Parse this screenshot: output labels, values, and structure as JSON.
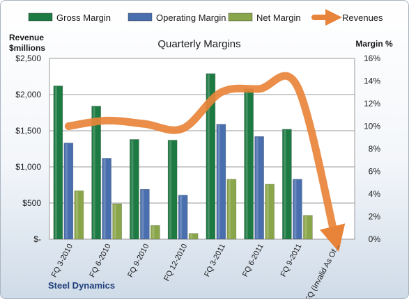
{
  "chart_data": {
    "type": "bar",
    "title": "Quarterly Margins",
    "footer": "Steel Dynamics",
    "categories": [
      "FQ 3-2010",
      "FQ 6-2010",
      "FQ 9-2010",
      "FQ 12-2010",
      "FQ 3-2011",
      "FQ 6-2011",
      "FQ 9-2011",
      "FQ (Invalid As Of..."
    ],
    "series": [
      {
        "name": "Gross Margin",
        "axis": "left",
        "color": "#1e7a43",
        "values": [
          2120,
          1840,
          1380,
          1370,
          2290,
          2080,
          1520,
          null
        ]
      },
      {
        "name": "Operating Margin",
        "axis": "left",
        "color": "#4a6fae",
        "values": [
          1330,
          1120,
          690,
          610,
          1590,
          1420,
          830,
          null
        ]
      },
      {
        "name": "Net Margin",
        "axis": "left",
        "color": "#8aa64a",
        "values": [
          670,
          490,
          190,
          80,
          830,
          760,
          330,
          null
        ]
      },
      {
        "name": "Revenues",
        "axis": "right",
        "color": "#e8843a",
        "values": [
          10.0,
          10.5,
          10.2,
          9.8,
          13.0,
          13.3,
          13.5,
          0.0
        ]
      }
    ],
    "y_left": {
      "label_line1": "Revenue",
      "label_line2": "$millions",
      "ylim": [
        0,
        2500
      ],
      "ticks": [
        0,
        500,
        1000,
        1500,
        2000,
        2500
      ],
      "tick_labels": [
        "$-",
        "$500",
        "$1,000",
        "$1,500",
        "$2,000",
        "$2,500"
      ]
    },
    "y_right": {
      "label": "Margin %",
      "ylim": [
        0,
        16
      ],
      "ticks": [
        0,
        2,
        4,
        6,
        8,
        10,
        12,
        14,
        16
      ],
      "tick_labels": [
        "0%",
        "2%",
        "4%",
        "6%",
        "8%",
        "10%",
        "12%",
        "14%",
        "16%"
      ]
    },
    "legend_position": "top",
    "grid": true
  }
}
